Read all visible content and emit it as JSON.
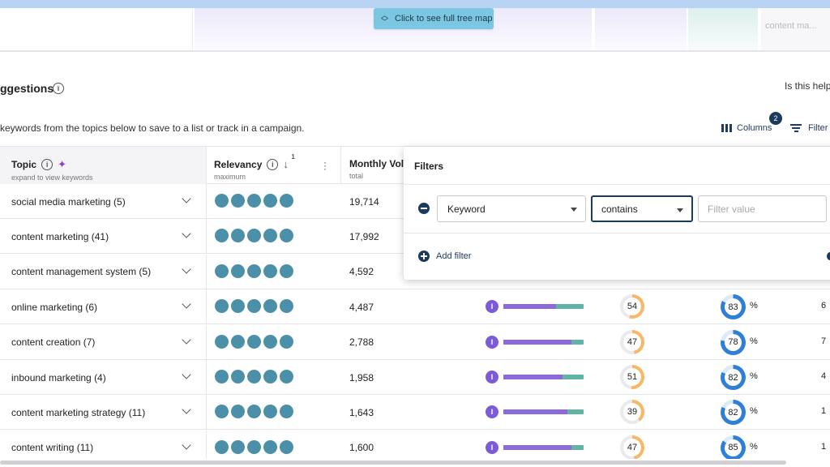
{
  "treemap": {
    "button_label": "Click to see full tree map",
    "partial_label": "content ma..."
  },
  "header": {
    "title": "ggestions",
    "subtitle": "keywords from the topics below to save to a list or track in a campaign.",
    "helpful_text": "Is this help",
    "columns_label": "Columns",
    "columns_badge": "2",
    "filter_label": "Filter"
  },
  "table": {
    "columns": {
      "topic": {
        "label": "Topic",
        "sub": "expand to view keywords"
      },
      "relevancy": {
        "label": "Relevancy",
        "sub": "maximum",
        "sort_index": "1"
      },
      "volume": {
        "label": "Monthly Vol",
        "sub": "total"
      }
    },
    "rows": [
      {
        "topic": "social media marketing (5)",
        "volume": "19,714",
        "relevancy": 5
      },
      {
        "topic": "content marketing (41)",
        "volume": "17,992",
        "relevancy": 5
      },
      {
        "topic": "content management system (5)",
        "volume": "4,592",
        "relevancy": 5
      },
      {
        "topic": "online marketing (6)",
        "volume": "4,487",
        "relevancy": 5,
        "intent": "I",
        "intent_share": 0.66,
        "difficulty": "54",
        "difficulty_ratio": 0.54,
        "percent": "83",
        "percent_ratio": 0.83,
        "last": "6"
      },
      {
        "topic": "content creation (7)",
        "volume": "2,788",
        "relevancy": 5,
        "intent": "I",
        "intent_share": 0.85,
        "difficulty": "47",
        "difficulty_ratio": 0.47,
        "percent": "78",
        "percent_ratio": 0.78,
        "last": "7"
      },
      {
        "topic": "inbound marketing (4)",
        "volume": "1,958",
        "relevancy": 5,
        "intent": "I",
        "intent_share": 0.74,
        "difficulty": "51",
        "difficulty_ratio": 0.51,
        "percent": "82",
        "percent_ratio": 0.82,
        "last": "4"
      },
      {
        "topic": "content marketing strategy (11)",
        "volume": "1,643",
        "relevancy": 5,
        "intent": "I",
        "intent_share": 0.8,
        "difficulty": "39",
        "difficulty_ratio": 0.39,
        "percent": "82",
        "percent_ratio": 0.82,
        "last": "1"
      },
      {
        "topic": "content writing (11)",
        "volume": "1,600",
        "relevancy": 5,
        "intent": "I",
        "intent_share": 0.85,
        "difficulty": "47",
        "difficulty_ratio": 0.47,
        "percent": "85",
        "percent_ratio": 0.85,
        "last": "1"
      }
    ]
  },
  "filters_panel": {
    "title": "Filters",
    "field_value": "Keyword",
    "operator_value": "contains",
    "value_placeholder": "Filter value",
    "add_filter_label": "Add filter"
  },
  "colors": {
    "accent": "#1b3a5c",
    "relevancy_dot": "#4c8fa8",
    "intent_purple": "#8c6ad9",
    "intent_teal": "#5fb4a6",
    "difficulty_ring": "#f6b867",
    "percent_ring": "#2f7fd6",
    "treemap_button": "#7bc6e0"
  }
}
